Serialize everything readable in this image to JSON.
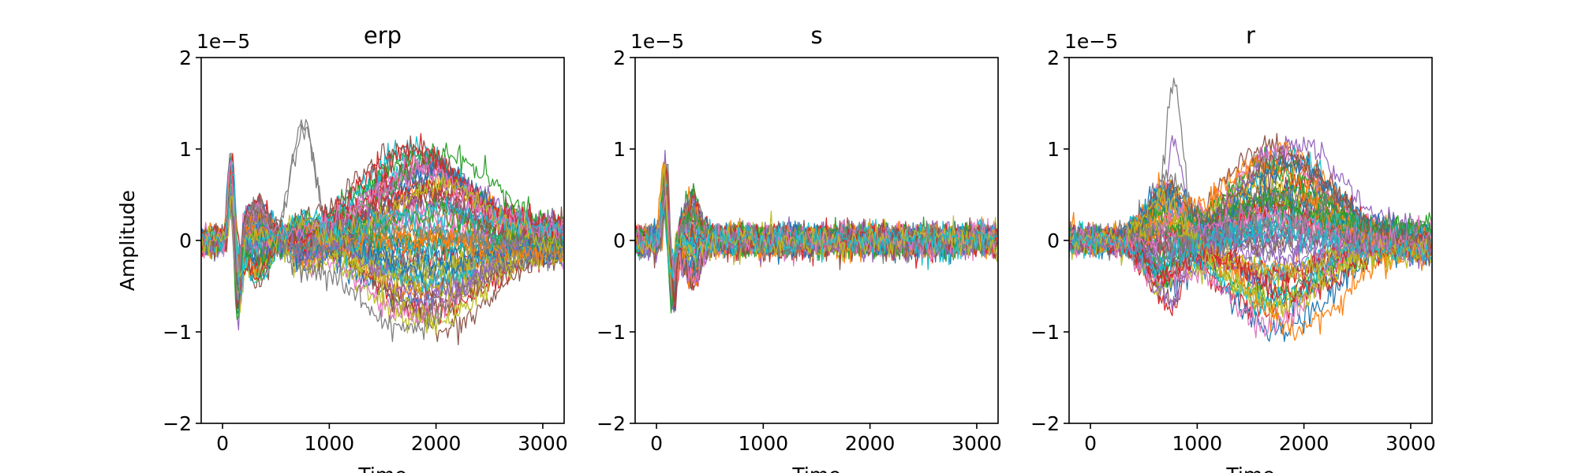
{
  "chart_data": [
    {
      "type": "line",
      "title": "erp",
      "xlabel": "Time",
      "ylabel": "Amplitude",
      "y_offset_label": "1e−5",
      "xlim": [
        -200,
        3200
      ],
      "ylim": [
        -2,
        2
      ],
      "xticks": [
        0,
        1000,
        2000,
        3000
      ],
      "xtick_labels": [
        "0",
        "1000",
        "2000",
        "3000"
      ],
      "yticks": [
        -2,
        -1,
        0,
        1,
        2
      ],
      "ytick_labels": [
        "−2",
        "−1",
        "0",
        "1",
        "2"
      ],
      "series_count": 60,
      "features": {
        "early_peak": {
          "t": 80,
          "max": 0.95
        },
        "early_trough": {
          "t": 140,
          "min": -0.85
        },
        "p300_bump": {
          "t": 750,
          "max": 1.45
        },
        "late_max": {
          "t": 1800,
          "max": 1.1
        },
        "late_min": {
          "t": 2000,
          "min": -0.98
        },
        "noise_sd": 0.07
      }
    },
    {
      "type": "line",
      "title": "s",
      "xlabel": "Time",
      "ylabel": "",
      "y_offset_label": "1e−5",
      "xlim": [
        -200,
        3200
      ],
      "ylim": [
        -2,
        2
      ],
      "xticks": [
        0,
        1000,
        2000,
        3000
      ],
      "xtick_labels": [
        "0",
        "1000",
        "2000",
        "3000"
      ],
      "yticks": [
        -2,
        -1,
        0,
        1,
        2
      ],
      "ytick_labels": [
        "−2",
        "−1",
        "0",
        "1",
        "2"
      ],
      "series_count": 60,
      "features": {
        "early_peak": {
          "t": 80,
          "max": 0.95
        },
        "early_trough": {
          "t": 140,
          "min": -0.85
        },
        "late_range": [
          -0.3,
          0.3
        ],
        "noise_sd": 0.08
      }
    },
    {
      "type": "line",
      "title": "r",
      "xlabel": "Time",
      "ylabel": "",
      "y_offset_label": "1e−5",
      "xlim": [
        -200,
        3200
      ],
      "ylim": [
        -2,
        2
      ],
      "xticks": [
        0,
        1000,
        2000,
        3000
      ],
      "xtick_labels": [
        "0",
        "1000",
        "2000",
        "3000"
      ],
      "yticks": [
        -2,
        -1,
        0,
        1,
        2
      ],
      "ytick_labels": [
        "−2",
        "−1",
        "0",
        "1",
        "2"
      ],
      "series_count": 60,
      "features": {
        "p300_bump": {
          "t": 780,
          "max": 1.88
        },
        "late_max": {
          "t": 1700,
          "max": 1.15
        },
        "late_min": {
          "t": 1950,
          "min": -1.05
        },
        "noise_sd": 0.07
      }
    }
  ],
  "colors": [
    "#1f77b4",
    "#ff7f0e",
    "#2ca02c",
    "#d62728",
    "#9467bd",
    "#8c564b",
    "#e377c2",
    "#7f7f7f",
    "#bcbd22",
    "#17becf"
  ]
}
